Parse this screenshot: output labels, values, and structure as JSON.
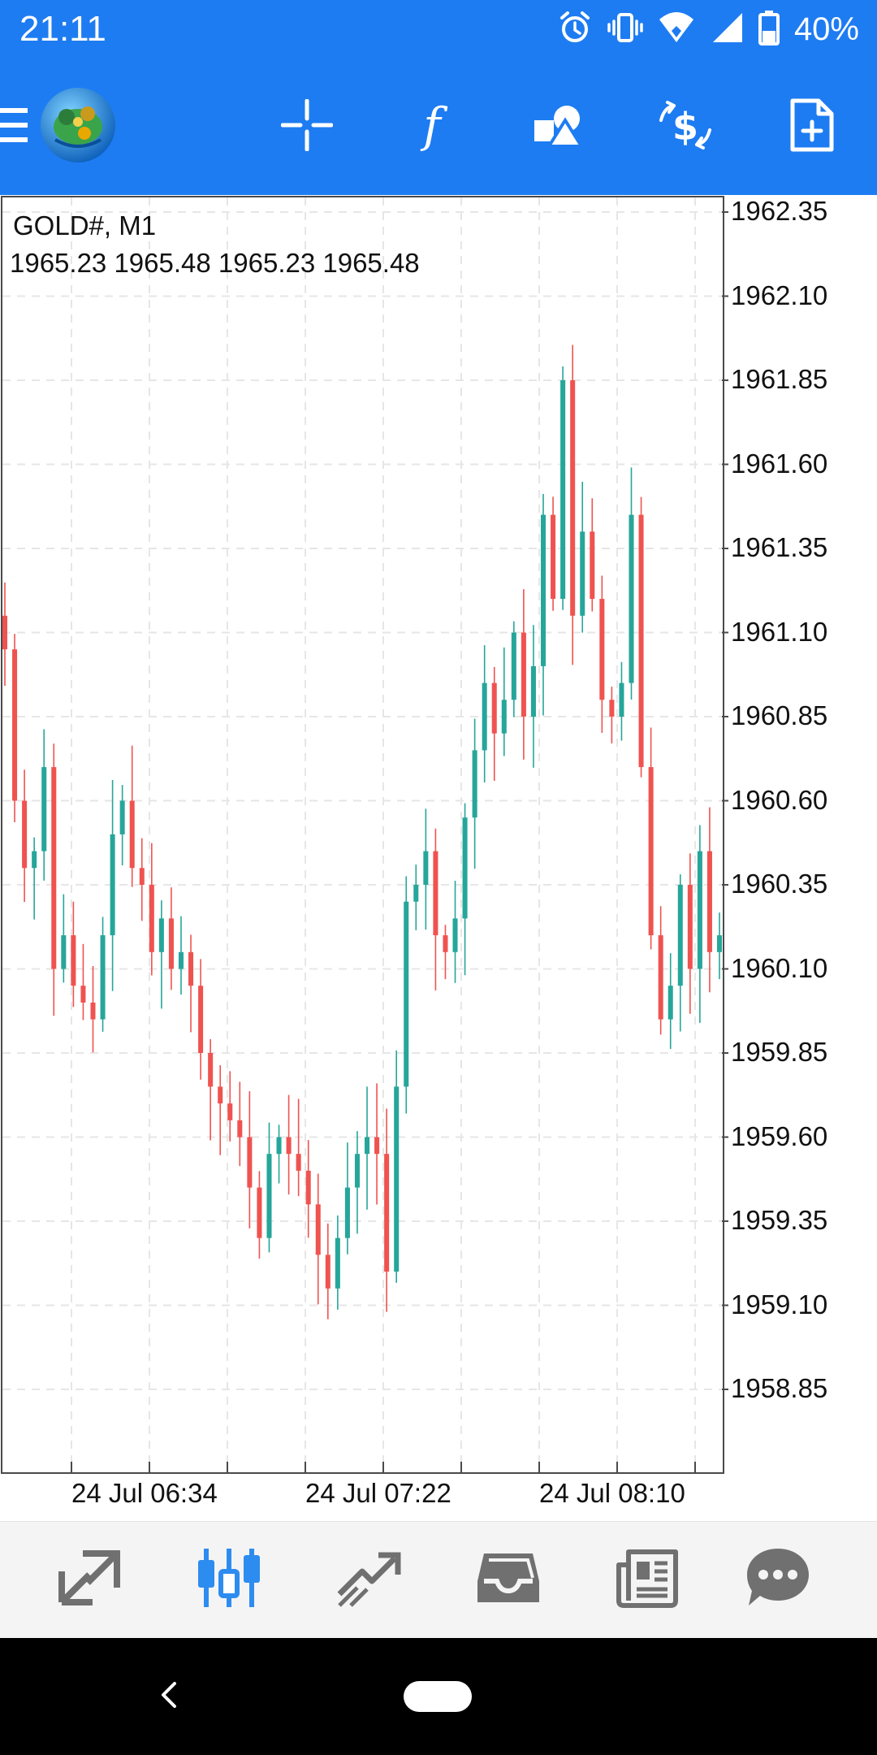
{
  "status_bar": {
    "time": "21:11",
    "battery": "40%",
    "icons": [
      "alarm-icon",
      "vibrate-icon",
      "wifi-icon",
      "signal-icon",
      "battery-icon"
    ]
  },
  "app_bar": {
    "background": "#1E7CF2",
    "buttons": [
      "menu-icon",
      "app-logo-icon",
      "crosshair-icon",
      "indicators-icon",
      "objects-icon",
      "trade-icon",
      "new-order-icon"
    ]
  },
  "chart": {
    "symbol_label": "GOLD#, M1",
    "ohlc_label": "1965.23 1965.48 1965.23 1965.48",
    "y_ticks": [
      "1962.35",
      "1962.10",
      "1961.85",
      "1961.60",
      "1961.35",
      "1961.10",
      "1960.85",
      "1960.60",
      "1960.35",
      "1960.10",
      "1959.85",
      "1959.60",
      "1959.35",
      "1959.10",
      "1958.85"
    ],
    "x_ticks": [
      "24 Jul 06:34",
      "24 Jul 07:22",
      "24 Jul 08:10"
    ],
    "bull_color": "#26A69A",
    "bear_color": "#EF5350"
  },
  "chart_data": {
    "type": "candlestick",
    "ylim": [
      1958.6,
      1962.4
    ],
    "closes": [
      1961.05,
      1960.6,
      1960.4,
      1960.45,
      1960.7,
      1960.1,
      1960.2,
      1960.05,
      1960.0,
      1959.95,
      1960.2,
      1960.5,
      1960.6,
      1960.4,
      1960.35,
      1960.15,
      1960.25,
      1960.1,
      1960.15,
      1960.05,
      1959.85,
      1959.75,
      1959.7,
      1959.65,
      1959.6,
      1959.45,
      1959.3,
      1959.55,
      1959.6,
      1959.55,
      1959.5,
      1959.4,
      1959.25,
      1959.15,
      1959.3,
      1959.45,
      1959.55,
      1959.6,
      1959.55,
      1959.2,
      1959.75,
      1960.3,
      1960.35,
      1960.45,
      1960.2,
      1960.15,
      1960.25,
      1960.55,
      1960.75,
      1960.95,
      1960.8,
      1960.9,
      1961.1,
      1960.85,
      1961.0,
      1961.45,
      1961.2,
      1961.85,
      1961.15,
      1961.4,
      1961.2,
      1960.9,
      1960.85,
      1960.95,
      1961.45,
      1960.7,
      1960.2,
      1959.95,
      1960.05,
      1960.35,
      1960.1,
      1960.45,
      1960.15,
      1960.2
    ]
  },
  "bottom_nav": {
    "items": [
      "quotes-icon",
      "chart-icon",
      "trade-icon",
      "history-icon",
      "news-icon",
      "chat-icon"
    ],
    "active_color": "#2D8CF0",
    "inactive_color": "#707070"
  },
  "system_nav": {
    "items": [
      "back-icon",
      "home-pill"
    ]
  }
}
